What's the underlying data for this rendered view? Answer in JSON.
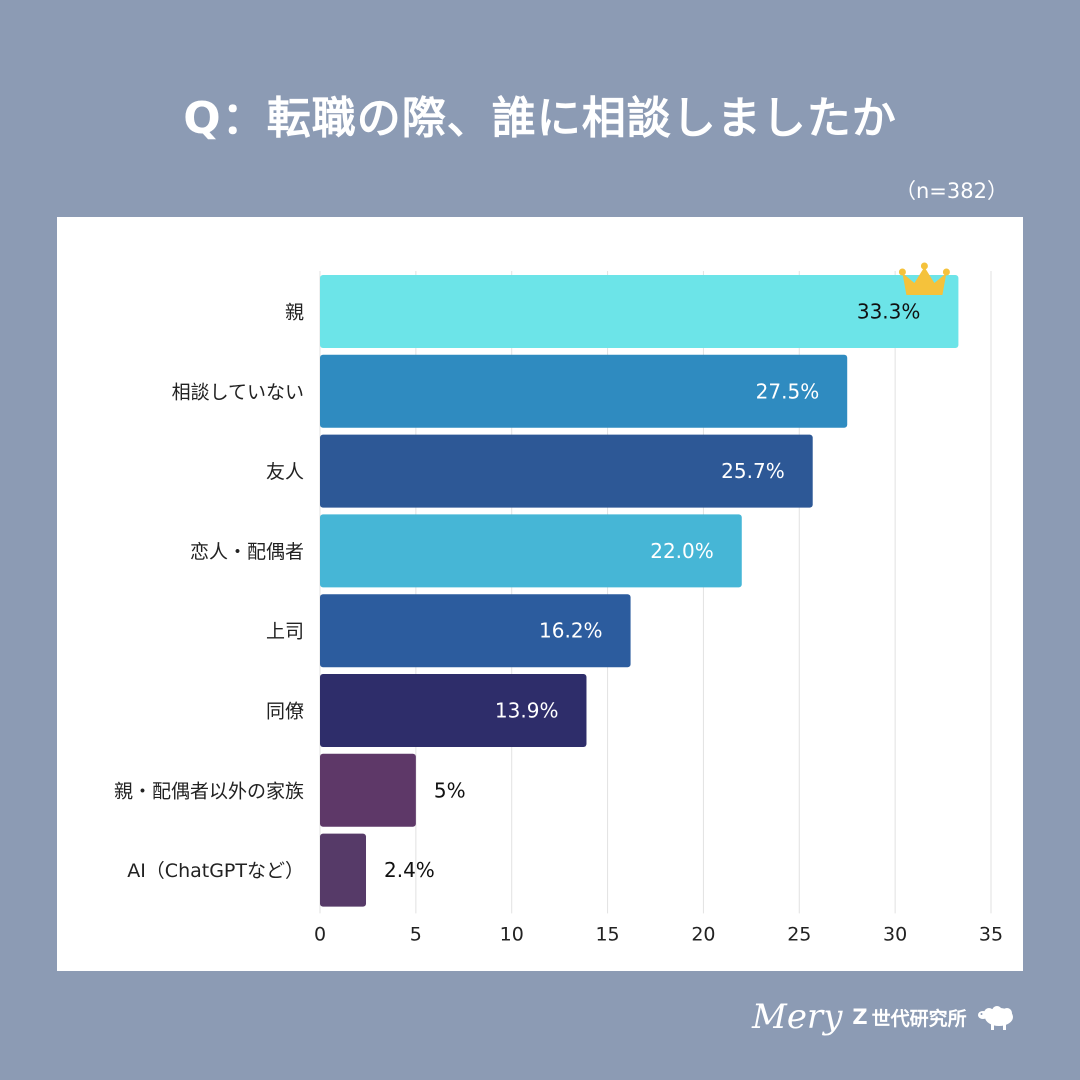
{
  "title": "Q：転職の際、誰に相談しましたか",
  "sample_size": "（n=382）",
  "brand": {
    "logo": "Mery",
    "z": "Z",
    "lab": "世代研究所"
  },
  "colors": {
    "background": "#8c9bb4",
    "bars": [
      "#6ce4e8",
      "#2f8bc0",
      "#2d5896",
      "#46b6d6",
      "#2c5c9e",
      "#2e2d6a",
      "#5e3868",
      "#563a68"
    ],
    "crown": "#f5c23b"
  },
  "chart_data": {
    "type": "bar",
    "orientation": "horizontal",
    "categories": [
      "親",
      "相談していない",
      "友人",
      "恋人・配偶者",
      "上司",
      "同僚",
      "親・配偶者以外の家族",
      "AI（ChatGPTなど）"
    ],
    "values": [
      33.3,
      27.5,
      25.7,
      22.0,
      16.2,
      13.9,
      5,
      2.4
    ],
    "value_labels": [
      "33.3%",
      "27.5%",
      "25.7%",
      "22.0%",
      "16.2%",
      "13.9%",
      "5%",
      "2.4%"
    ],
    "xlim": [
      0,
      35
    ],
    "xticks": [
      "0",
      "5",
      "10",
      "15",
      "20",
      "25",
      "30",
      "35"
    ],
    "grid": true,
    "top_marker": "crown-icon"
  }
}
